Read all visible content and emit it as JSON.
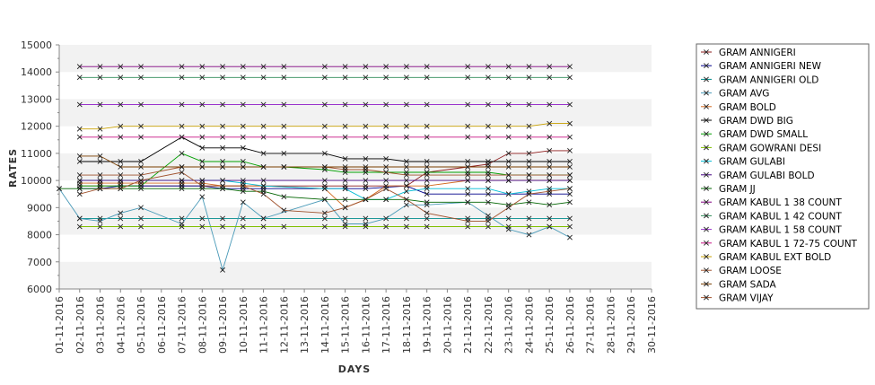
{
  "chart_data": {
    "type": "line",
    "xlabel": "DAYS",
    "ylabel": "RATES",
    "ylim": [
      6000,
      15000
    ],
    "yticks": [
      6000,
      7000,
      8000,
      9000,
      10000,
      11000,
      12000,
      13000,
      14000,
      15000
    ],
    "categories": [
      "01-11-2016",
      "02-11-2016",
      "03-11-2016",
      "04-11-2016",
      "05-11-2016",
      "06-11-2016",
      "07-11-2016",
      "08-11-2016",
      "09-11-2016",
      "10-11-2016",
      "11-11-2016",
      "12-11-2016",
      "13-11-2016",
      "14-11-2016",
      "15-11-2016",
      "16-11-2016",
      "17-11-2016",
      "18-11-2016",
      "19-11-2016",
      "20-11-2016",
      "21-11-2016",
      "22-11-2016",
      "23-11-2016",
      "24-11-2016",
      "25-11-2016",
      "26-11-2016",
      "27-11-2016",
      "28-11-2016",
      "29-11-2016",
      "30-11-2016"
    ],
    "grid": "horizontal alternating bands",
    "legend_position": "right",
    "series": [
      {
        "name": "GRAM ANNIGERI",
        "color": "#8b1a1a",
        "values": [
          null,
          9800,
          9800,
          9800,
          9800,
          null,
          9800,
          9800,
          9800,
          9800,
          9800,
          null,
          null,
          9800,
          9800,
          9800,
          null,
          9800,
          10300,
          null,
          10500,
          10600,
          11000,
          11000,
          11100,
          11100,
          null,
          null,
          null,
          null
        ]
      },
      {
        "name": "GRAM ANNIGERI NEW",
        "color": "#00008b",
        "values": [
          null,
          9700,
          9700,
          9800,
          9800,
          null,
          9800,
          9800,
          9700,
          9700,
          9700,
          null,
          null,
          9700,
          9700,
          9700,
          null,
          9800,
          9500,
          null,
          9500,
          9500,
          9500,
          9500,
          9500,
          9500,
          null,
          null,
          null,
          null
        ]
      },
      {
        "name": "GRAM ANNIGERI OLD",
        "color": "#008b8b",
        "values": [
          null,
          8600,
          8600,
          8600,
          8600,
          null,
          8600,
          8600,
          8600,
          8600,
          8600,
          null,
          null,
          8600,
          8600,
          8600,
          null,
          8600,
          8600,
          null,
          8600,
          8600,
          8600,
          8600,
          8600,
          8600,
          null,
          null,
          null,
          null
        ]
      },
      {
        "name": "GRAM AVG",
        "color": "#4a9ab8",
        "values": [
          9700,
          8600,
          8500,
          8800,
          9000,
          null,
          8400,
          9400,
          6700,
          9200,
          8600,
          null,
          null,
          9300,
          8400,
          8400,
          8600,
          9100,
          9100,
          null,
          9200,
          8700,
          8200,
          8000,
          8300,
          7900,
          null,
          null,
          null,
          null
        ]
      },
      {
        "name": "GRAM BOLD",
        "color": "#d2691e",
        "values": [
          null,
          9900,
          9900,
          9900,
          9900,
          null,
          9900,
          9900,
          9800,
          9800,
          9800,
          null,
          null,
          9700,
          9000,
          9300,
          9800,
          9800,
          9800,
          null,
          10000,
          10000,
          10000,
          10000,
          10000,
          10000,
          null,
          null,
          null,
          null
        ]
      },
      {
        "name": "GRAM DWD BIG",
        "color": "#000000",
        "values": [
          null,
          10700,
          10700,
          10700,
          10700,
          null,
          11600,
          11200,
          11200,
          11200,
          11000,
          11000,
          null,
          11000,
          10800,
          10800,
          10800,
          10700,
          10700,
          null,
          10700,
          10700,
          10700,
          10700,
          10700,
          10700,
          null,
          null,
          null,
          null
        ]
      },
      {
        "name": "GRAM DWD SMALL",
        "color": "#00a000",
        "values": [
          null,
          9800,
          9800,
          9800,
          9800,
          null,
          11000,
          10700,
          10700,
          10700,
          10500,
          10500,
          null,
          10400,
          10300,
          10300,
          10300,
          10300,
          10300,
          null,
          10300,
          10300,
          10200,
          10200,
          10200,
          10200,
          null,
          null,
          null,
          null
        ]
      },
      {
        "name": "GRAM GOWRANI DESI",
        "color": "#7fbf00",
        "values": [
          null,
          8300,
          8300,
          8300,
          8300,
          null,
          8300,
          8300,
          8300,
          8300,
          8300,
          8300,
          null,
          8300,
          8300,
          8300,
          8300,
          8300,
          8300,
          null,
          8300,
          8300,
          8300,
          8300,
          8300,
          8300,
          null,
          null,
          null,
          null
        ]
      },
      {
        "name": "GRAM GULABI",
        "color": "#00bcd4",
        "values": [
          null,
          10000,
          10000,
          10000,
          10000,
          null,
          10000,
          10000,
          10000,
          9900,
          9800,
          null,
          null,
          9700,
          9700,
          9300,
          9300,
          9600,
          9700,
          null,
          9700,
          9700,
          9500,
          9600,
          9700,
          9700,
          null,
          null,
          null,
          null
        ]
      },
      {
        "name": "GRAM GULABI BOLD",
        "color": "#400080",
        "values": [
          null,
          10000,
          10000,
          10000,
          10000,
          null,
          10000,
          10000,
          10000,
          10000,
          10000,
          null,
          null,
          10000,
          10000,
          10000,
          10000,
          10000,
          10000,
          null,
          10000,
          10000,
          10000,
          10000,
          10000,
          10000,
          null,
          null,
          null,
          null
        ]
      },
      {
        "name": "GRAM JJ",
        "color": "#006400",
        "values": [
          9700,
          9700,
          9700,
          9700,
          9700,
          null,
          9700,
          9700,
          9700,
          9600,
          9600,
          9400,
          null,
          9300,
          9300,
          9300,
          9300,
          9300,
          9200,
          null,
          9200,
          9200,
          9100,
          9200,
          9100,
          9200,
          null,
          null,
          null,
          null
        ]
      },
      {
        "name": "GRAM KABUL 1 38 COUNT",
        "color": "#800080",
        "values": [
          null,
          14200,
          14200,
          14200,
          14200,
          null,
          14200,
          14200,
          14200,
          14200,
          14200,
          14200,
          null,
          14200,
          14200,
          14200,
          14200,
          14200,
          14200,
          null,
          14200,
          14200,
          14200,
          14200,
          14200,
          14200,
          null,
          null,
          null,
          null
        ]
      },
      {
        "name": "GRAM KABUL 1 42 COUNT",
        "color": "#2e8b57",
        "values": [
          null,
          13800,
          13800,
          13800,
          13800,
          null,
          13800,
          13800,
          13800,
          13800,
          13800,
          13800,
          null,
          13800,
          13800,
          13800,
          13800,
          13800,
          13800,
          null,
          13800,
          13800,
          13800,
          13800,
          13800,
          13800,
          null,
          null,
          null,
          null
        ]
      },
      {
        "name": "GRAM KABUL 1 58 COUNT",
        "color": "#9932cc",
        "values": [
          null,
          12800,
          12800,
          12800,
          12800,
          null,
          12800,
          12800,
          12800,
          12800,
          12800,
          12800,
          null,
          12800,
          12800,
          12800,
          12800,
          12800,
          12800,
          null,
          12800,
          12800,
          12800,
          12800,
          12800,
          12800,
          null,
          null,
          null,
          null
        ]
      },
      {
        "name": "GRAM KABUL 1 72-75 COUNT",
        "color": "#c71585",
        "values": [
          null,
          11600,
          11600,
          11600,
          11600,
          null,
          11600,
          11600,
          11600,
          11600,
          11600,
          11600,
          null,
          11600,
          11600,
          11600,
          11600,
          11600,
          11600,
          null,
          11600,
          11600,
          11600,
          11600,
          11600,
          11600,
          null,
          null,
          null,
          null
        ]
      },
      {
        "name": "GRAM KABUL EXT BOLD",
        "color": "#c8a000",
        "values": [
          null,
          11900,
          11900,
          12000,
          12000,
          null,
          12000,
          12000,
          12000,
          12000,
          12000,
          12000,
          null,
          12000,
          12000,
          12000,
          12000,
          12000,
          12000,
          null,
          12000,
          12000,
          12000,
          12000,
          12100,
          12100,
          null,
          null,
          null,
          null
        ]
      },
      {
        "name": "GRAM LOOSE",
        "color": "#a0522d",
        "values": [
          null,
          10200,
          10200,
          10200,
          10200,
          null,
          10500,
          10500,
          10500,
          10500,
          10500,
          10500,
          null,
          10500,
          10400,
          10400,
          10300,
          10200,
          10200,
          null,
          10200,
          10200,
          10200,
          10200,
          10200,
          10200,
          null,
          null,
          null,
          null
        ]
      },
      {
        "name": "GRAM SADA",
        "color": "#7b3f00",
        "values": [
          null,
          10900,
          10900,
          10500,
          10500,
          null,
          10500,
          10500,
          10500,
          10500,
          10500,
          10500,
          null,
          10500,
          10500,
          10500,
          10500,
          10500,
          10500,
          null,
          10500,
          10500,
          10500,
          10500,
          10500,
          10500,
          null,
          null,
          null,
          null
        ]
      },
      {
        "name": "GRAM VIJAY",
        "color": "#a0522d",
        "values": [
          null,
          9500,
          9700,
          9700,
          10000,
          null,
          10300,
          9800,
          9800,
          9800,
          9500,
          8900,
          null,
          8800,
          9000,
          9300,
          9700,
          9300,
          8800,
          null,
          8500,
          8500,
          9000,
          9500,
          9600,
          9700,
          null,
          null,
          null,
          null
        ]
      }
    ]
  }
}
